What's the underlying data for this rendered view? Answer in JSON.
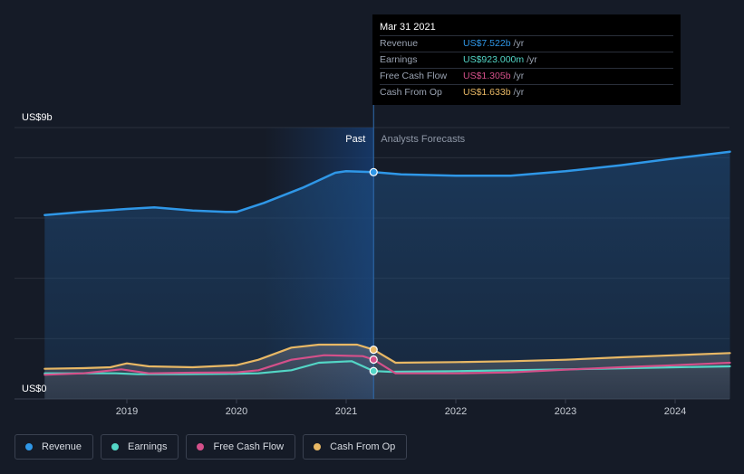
{
  "colors": {
    "revenue": "#2f97e7",
    "earnings": "#53d6c6",
    "free_cash_flow": "#d4508a",
    "cash_from_op": "#e8b865"
  },
  "tooltip": {
    "date": "Mar 31 2021",
    "rows": [
      {
        "label": "Revenue",
        "value": "US$7.522b",
        "unit": "/yr"
      },
      {
        "label": "Earnings",
        "value": "US$923.000m",
        "unit": "/yr"
      },
      {
        "label": "Free Cash Flow",
        "value": "US$1.305b",
        "unit": "/yr"
      },
      {
        "label": "Cash From Op",
        "value": "US$1.633b",
        "unit": "/yr"
      }
    ]
  },
  "legend": {
    "items": [
      "Revenue",
      "Earnings",
      "Free Cash Flow",
      "Cash From Op"
    ]
  },
  "chart_data": {
    "type": "line",
    "y_top_label": "US$9b",
    "y_bottom_label": "US$0",
    "ylim": [
      0,
      9
    ],
    "xlim": [
      2018.2,
      2024.5
    ],
    "x_ticks": [
      "2019",
      "2020",
      "2021",
      "2022",
      "2023",
      "2024"
    ],
    "past_label": "Past",
    "forecast_label": "Analysts Forecasts",
    "divider_x": 2021.25,
    "highlight_start": 2020.25,
    "series": [
      {
        "name": "Revenue",
        "key": "revenue",
        "points": [
          [
            2018.25,
            6.1
          ],
          [
            2018.6,
            6.2
          ],
          [
            2019.0,
            6.3
          ],
          [
            2019.25,
            6.35
          ],
          [
            2019.6,
            6.25
          ],
          [
            2019.9,
            6.2
          ],
          [
            2020.0,
            6.2
          ],
          [
            2020.25,
            6.5
          ],
          [
            2020.6,
            7.0
          ],
          [
            2020.9,
            7.5
          ],
          [
            2021.0,
            7.55
          ],
          [
            2021.25,
            7.52
          ],
          [
            2021.5,
            7.45
          ],
          [
            2022.0,
            7.4
          ],
          [
            2022.5,
            7.4
          ],
          [
            2023.0,
            7.55
          ],
          [
            2023.5,
            7.75
          ],
          [
            2024.0,
            7.98
          ],
          [
            2024.5,
            8.2
          ]
        ]
      },
      {
        "name": "Earnings",
        "key": "earnings",
        "points": [
          [
            2018.25,
            0.85
          ],
          [
            2018.6,
            0.85
          ],
          [
            2018.9,
            0.85
          ],
          [
            2019.1,
            0.82
          ],
          [
            2019.5,
            0.82
          ],
          [
            2019.9,
            0.83
          ],
          [
            2020.2,
            0.85
          ],
          [
            2020.5,
            0.95
          ],
          [
            2020.75,
            1.2
          ],
          [
            2021.05,
            1.25
          ],
          [
            2021.25,
            0.923
          ],
          [
            2021.4,
            0.9
          ],
          [
            2022.0,
            0.92
          ],
          [
            2023.0,
            0.98
          ],
          [
            2024.0,
            1.05
          ],
          [
            2024.5,
            1.08
          ]
        ]
      },
      {
        "name": "Free Cash Flow",
        "key": "free_cash_flow",
        "points": [
          [
            2018.25,
            0.8
          ],
          [
            2018.6,
            0.85
          ],
          [
            2018.95,
            0.98
          ],
          [
            2019.2,
            0.85
          ],
          [
            2019.6,
            0.87
          ],
          [
            2020.0,
            0.88
          ],
          [
            2020.2,
            0.95
          ],
          [
            2020.5,
            1.3
          ],
          [
            2020.8,
            1.45
          ],
          [
            2021.15,
            1.42
          ],
          [
            2021.25,
            1.305
          ],
          [
            2021.45,
            0.85
          ],
          [
            2022.0,
            0.85
          ],
          [
            2022.5,
            0.88
          ],
          [
            2023.0,
            0.97
          ],
          [
            2023.5,
            1.05
          ],
          [
            2024.0,
            1.12
          ],
          [
            2024.5,
            1.2
          ]
        ]
      },
      {
        "name": "Cash From Op",
        "key": "cash_from_op",
        "points": [
          [
            2018.25,
            1.0
          ],
          [
            2018.6,
            1.02
          ],
          [
            2018.85,
            1.05
          ],
          [
            2019.0,
            1.18
          ],
          [
            2019.2,
            1.08
          ],
          [
            2019.6,
            1.05
          ],
          [
            2020.0,
            1.12
          ],
          [
            2020.2,
            1.3
          ],
          [
            2020.5,
            1.7
          ],
          [
            2020.75,
            1.8
          ],
          [
            2021.1,
            1.8
          ],
          [
            2021.25,
            1.633
          ],
          [
            2021.45,
            1.2
          ],
          [
            2022.0,
            1.22
          ],
          [
            2022.5,
            1.25
          ],
          [
            2023.0,
            1.3
          ],
          [
            2023.5,
            1.38
          ],
          [
            2024.0,
            1.45
          ],
          [
            2024.5,
            1.52
          ]
        ]
      }
    ]
  }
}
